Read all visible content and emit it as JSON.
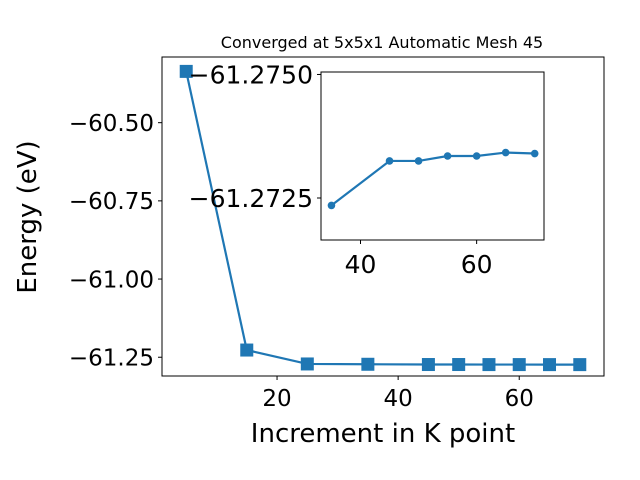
{
  "chart_data": [
    {
      "type": "line",
      "title": "Converged at 5x5x1 Automatic Mesh 45",
      "xlabel": "Increment in K point",
      "ylabel": "Energy (eV)",
      "xlim": [
        1,
        74
      ],
      "ylim": [
        -61.31,
        -60.29
      ],
      "xticks": [
        20,
        40,
        60
      ],
      "xtick_labels": [
        "20",
        "40",
        "60"
      ],
      "yticks": [
        -61.25,
        -61.0,
        -60.75,
        -60.5
      ],
      "ytick_labels": [
        "−61.25",
        "−61.00",
        "−60.75",
        "−60.50"
      ],
      "grid": false,
      "marker": "square",
      "color": "#1f77b4",
      "series": [
        {
          "x": [
            5,
            15,
            25,
            35,
            45,
            50,
            55,
            60,
            65,
            70
          ],
          "y": [
            -60.336,
            -61.227,
            -61.2715,
            -61.2725,
            -61.2733,
            -61.2733,
            -61.2735,
            -61.2735,
            -61.2736,
            -61.2736
          ]
        }
      ]
    },
    {
      "type": "line",
      "title": "",
      "xlabel": "",
      "ylabel": "",
      "xlim": [
        33.2,
        71.6
      ],
      "ylim": [
        -61.27165,
        -61.27505
      ],
      "xticks": [
        40,
        60
      ],
      "xtick_labels": [
        "40",
        "60"
      ],
      "yticks": [
        -61.2725,
        -61.275
      ],
      "ytick_labels": [
        "−61.2725",
        "−61.2750"
      ],
      "grid": false,
      "marker": "circle",
      "color": "#1f77b4",
      "series": [
        {
          "x": [
            35,
            45,
            50,
            55,
            60,
            65,
            70
          ],
          "y": [
            -61.27235,
            -61.27325,
            -61.27325,
            -61.27335,
            -61.27335,
            -61.27342,
            -61.2734
          ]
        }
      ]
    }
  ]
}
